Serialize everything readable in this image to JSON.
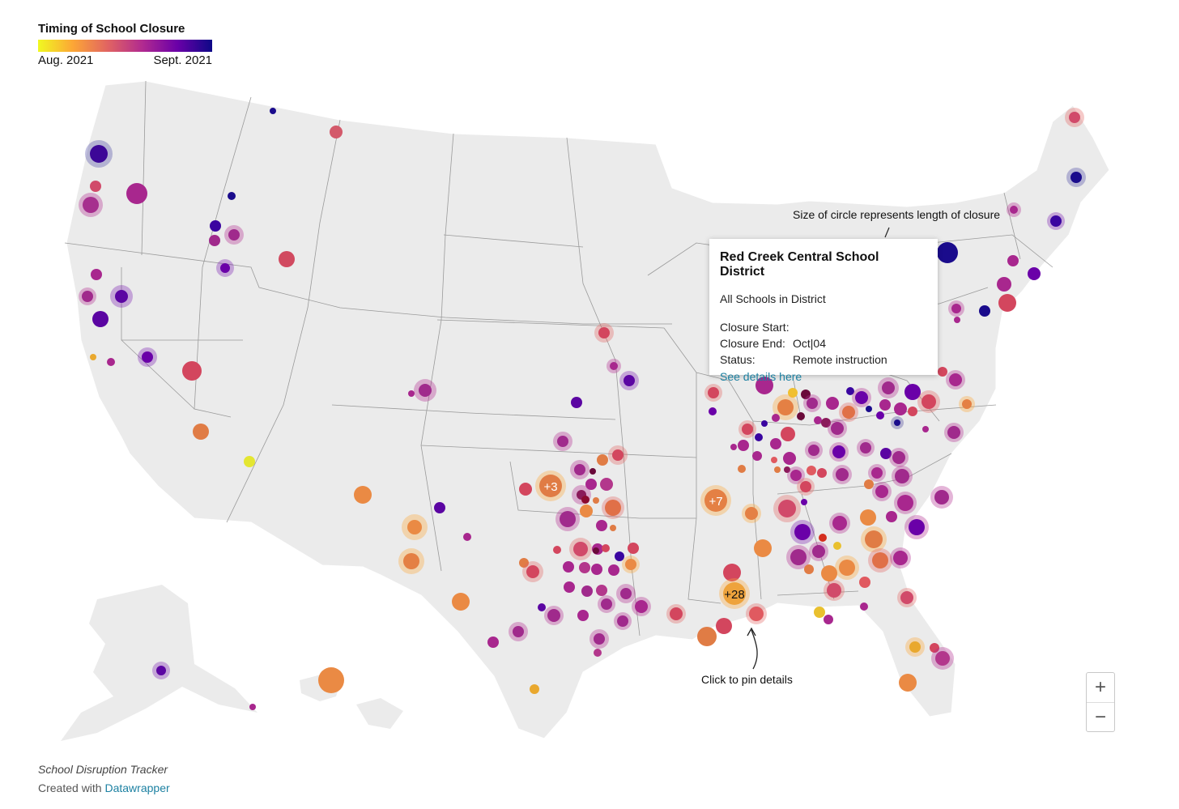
{
  "legend": {
    "title": "Timing of School Closure",
    "start_label": "Aug. 2021",
    "end_label": "Sept. 2021",
    "colors": [
      "#f0f921",
      "#fca636",
      "#e16462",
      "#b12a90",
      "#6a00a8",
      "#0d0887"
    ]
  },
  "annotations": {
    "size_note": "Size of circle represents length of closure",
    "pin_note": "Click to pin details"
  },
  "clusters": [
    "+3",
    "+7",
    "+28"
  ],
  "tooltip": {
    "title": "Red Creek Central School District",
    "subtitle": "All Schools in District",
    "closure_start_label": "Closure Start:",
    "closure_start_value": "",
    "closure_end_label": "Closure End:",
    "closure_end_value": "Oct|04",
    "status_label": "Status:",
    "status_value": "Remote instruction",
    "link_text": "See details here"
  },
  "zoom": {
    "in_label": "+",
    "out_label": "−"
  },
  "footer": {
    "title": "School Disruption Tracker",
    "created_prefix": "Created with",
    "created_link": "Datawrapper"
  }
}
